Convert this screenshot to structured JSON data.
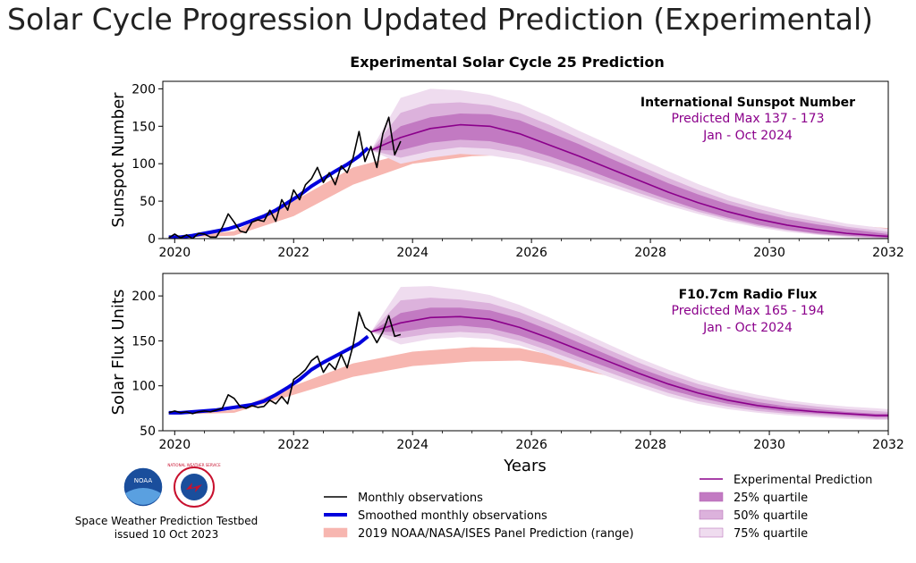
{
  "page": {
    "title": "Solar Cycle Progression Updated Prediction (Experimental)"
  },
  "chart_suptitle": "Experimental Solar Cycle 25 Prediction",
  "x_axis_label": "Years",
  "footer": {
    "org": "Space Weather Prediction Testbed",
    "issued": "issued 10 Oct 2023"
  },
  "logos": {
    "noaa": "NOAA",
    "nws": "NATIONAL WEATHER SERVICE"
  },
  "legend_left": [
    {
      "label": "Monthly observations",
      "color": "#000000",
      "kind": "line"
    },
    {
      "label": "Smoothed monthly observations",
      "color": "#0000dd",
      "kind": "thick"
    },
    {
      "label": "2019 NOAA/NASA/ISES Panel Prediction (range)",
      "color": "#f7b6b0",
      "kind": "patch"
    }
  ],
  "legend_right": [
    {
      "label": "Experimental Prediction",
      "color": "#8b008b",
      "kind": "line"
    },
    {
      "label": "25% quartile",
      "color": "#c27ac2",
      "kind": "patch"
    },
    {
      "label": "50% quartile",
      "color": "#dcb2dc",
      "kind": "patch"
    },
    {
      "label": "75% quartile",
      "color": "#efdcef",
      "kind": "patch"
    }
  ],
  "chart_data": [
    {
      "type": "line",
      "ylabel": "Sunspot Number",
      "xlim": [
        2019.8,
        2032
      ],
      "ylim": [
        0,
        210
      ],
      "xticks": [
        2020,
        2022,
        2024,
        2026,
        2028,
        2030,
        2032
      ],
      "yticks": [
        0,
        50,
        100,
        150,
        200
      ],
      "annotation": {
        "title": "International Sunspot Number",
        "line1": "Predicted Max 137 - 173",
        "line2": "Jan - Oct 2024"
      },
      "monthly_observations": {
        "x": [
          2019.9,
          2020.0,
          2020.1,
          2020.2,
          2020.3,
          2020.4,
          2020.5,
          2020.6,
          2020.7,
          2020.8,
          2020.9,
          2021.0,
          2021.1,
          2021.2,
          2021.3,
          2021.4,
          2021.5,
          2021.6,
          2021.7,
          2021.8,
          2021.9,
          2022.0,
          2022.1,
          2022.2,
          2022.3,
          2022.4,
          2022.5,
          2022.6,
          2022.7,
          2022.8,
          2022.9,
          2023.0,
          2023.1,
          2023.2,
          2023.3,
          2023.4,
          2023.5,
          2023.6,
          2023.7,
          2023.8
        ],
        "y": [
          1,
          6,
          1,
          5,
          0,
          7,
          6,
          2,
          2,
          15,
          33,
          22,
          10,
          8,
          22,
          25,
          23,
          38,
          23,
          52,
          38,
          65,
          52,
          72,
          80,
          95,
          75,
          88,
          72,
          97,
          88,
          108,
          143,
          103,
          123,
          95,
          140,
          162,
          112,
          130
        ]
      },
      "smoothed_observations": {
        "x": [
          2019.9,
          2020.1,
          2020.3,
          2020.5,
          2020.7,
          2020.9,
          2021.1,
          2021.3,
          2021.5,
          2021.7,
          2021.9,
          2022.1,
          2022.3,
          2022.5,
          2022.7,
          2022.9,
          2023.1,
          2023.25
        ],
        "y": [
          2,
          2,
          4,
          7,
          10,
          13,
          18,
          24,
          30,
          38,
          48,
          58,
          70,
          80,
          90,
          99,
          110,
          121
        ]
      },
      "panel_prediction_range": {
        "x": [
          2019.9,
          2021.0,
          2022.0,
          2023.0,
          2024.0,
          2025.0,
          2025.8,
          2026.5,
          2027.5,
          2028.5,
          2029.5,
          2030.5,
          2031.5,
          2032.0
        ],
        "lower": [
          1,
          4,
          30,
          72,
          100,
          110,
          112,
          100,
          74,
          50,
          30,
          16,
          6,
          3
        ],
        "upper": [
          1,
          10,
          50,
          95,
          116,
          124,
          122,
          108,
          85,
          62,
          42,
          28,
          17,
          14
        ]
      },
      "experimental_prediction": {
        "x": [
          2023.3,
          2023.8,
          2024.3,
          2024.8,
          2025.3,
          2025.8,
          2026.3,
          2026.8,
          2027.3,
          2027.8,
          2028.3,
          2028.8,
          2029.3,
          2029.8,
          2030.3,
          2030.8,
          2031.3,
          2031.8,
          2032.0
        ],
        "y": [
          118,
          135,
          147,
          152,
          150,
          140,
          125,
          110,
          94,
          78,
          62,
          48,
          36,
          26,
          18,
          12,
          7,
          4,
          3
        ],
        "q25": {
          "lower": [
            118,
            118,
            128,
            132,
            130,
            122,
            110,
            96,
            81,
            66,
            52,
            39,
            28,
            19,
            12,
            7,
            4,
            2,
            1
          ],
          "upper": [
            118,
            150,
            162,
            167,
            166,
            158,
            142,
            126,
            108,
            91,
            74,
            59,
            46,
            35,
            26,
            19,
            13,
            8,
            6
          ]
        },
        "q50": {
          "lower": [
            118,
            108,
            117,
            122,
            120,
            113,
            102,
            89,
            75,
            61,
            48,
            36,
            26,
            17,
            11,
            6,
            3,
            1,
            0
          ],
          "upper": [
            118,
            168,
            180,
            182,
            178,
            168,
            152,
            134,
            116,
            98,
            81,
            65,
            51,
            40,
            30,
            23,
            16,
            11,
            9
          ]
        },
        "q75": {
          "lower": [
            118,
            100,
            108,
            113,
            111,
            105,
            95,
            83,
            70,
            57,
            44,
            33,
            23,
            15,
            9,
            5,
            2,
            0,
            0
          ],
          "upper": [
            118,
            188,
            200,
            198,
            192,
            180,
            163,
            144,
            126,
            108,
            90,
            73,
            58,
            46,
            36,
            28,
            20,
            15,
            13
          ]
        }
      }
    },
    {
      "type": "line",
      "ylabel": "Solar Flux Units",
      "xlim": [
        2019.8,
        2032
      ],
      "ylim": [
        50,
        225
      ],
      "xticks": [
        2020,
        2022,
        2024,
        2026,
        2028,
        2030,
        2032
      ],
      "yticks": [
        50,
        100,
        150,
        200
      ],
      "annotation": {
        "title": "F10.7cm Radio Flux",
        "line1": "Predicted Max 165 - 194",
        "line2": "Jan - Oct 2024"
      },
      "monthly_observations": {
        "x": [
          2019.9,
          2020.0,
          2020.1,
          2020.2,
          2020.3,
          2020.4,
          2020.5,
          2020.6,
          2020.7,
          2020.8,
          2020.9,
          2021.0,
          2021.1,
          2021.2,
          2021.3,
          2021.4,
          2021.5,
          2021.6,
          2021.7,
          2021.8,
          2021.9,
          2022.0,
          2022.1,
          2022.2,
          2022.3,
          2022.4,
          2022.5,
          2022.6,
          2022.7,
          2022.8,
          2022.9,
          2023.0,
          2023.1,
          2023.2,
          2023.3,
          2023.4,
          2023.5,
          2023.6,
          2023.7,
          2023.8
        ],
        "y": [
          70,
          72,
          70,
          71,
          69,
          71,
          72,
          71,
          73,
          75,
          90,
          86,
          77,
          75,
          78,
          76,
          77,
          84,
          80,
          88,
          80,
          107,
          112,
          118,
          128,
          133,
          115,
          125,
          118,
          135,
          120,
          145,
          182,
          165,
          160,
          148,
          160,
          178,
          155,
          157
        ]
      },
      "smoothed_observations": {
        "x": [
          2019.9,
          2020.1,
          2020.3,
          2020.5,
          2020.7,
          2020.9,
          2021.1,
          2021.3,
          2021.5,
          2021.7,
          2021.9,
          2022.1,
          2022.3,
          2022.5,
          2022.7,
          2022.9,
          2023.1,
          2023.25
        ],
        "y": [
          70,
          70,
          71,
          72,
          73,
          75,
          77,
          79,
          83,
          90,
          98,
          107,
          118,
          126,
          133,
          140,
          147,
          155
        ]
      },
      "panel_prediction_range": {
        "x": [
          2019.9,
          2021.0,
          2022.0,
          2023.0,
          2024.0,
          2025.0,
          2025.8,
          2026.5,
          2027.5,
          2028.5,
          2029.5,
          2030.5,
          2031.5,
          2032.0
        ],
        "lower": [
          68,
          70,
          90,
          110,
          122,
          127,
          128,
          122,
          108,
          92,
          80,
          72,
          68,
          66
        ],
        "upper": [
          68,
          73,
          100,
          125,
          138,
          143,
          142,
          132,
          115,
          98,
          85,
          76,
          72,
          71
        ]
      },
      "experimental_prediction": {
        "x": [
          2023.3,
          2023.8,
          2024.3,
          2024.8,
          2025.3,
          2025.8,
          2026.3,
          2026.8,
          2027.3,
          2027.8,
          2028.3,
          2028.8,
          2029.3,
          2029.8,
          2030.3,
          2030.8,
          2031.3,
          2031.8,
          2032.0
        ],
        "y": [
          160,
          170,
          176,
          177,
          174,
          165,
          153,
          140,
          127,
          114,
          102,
          92,
          84,
          78,
          74,
          71,
          69,
          67,
          67
        ],
        "q25": {
          "lower": [
            160,
            160,
            165,
            167,
            164,
            156,
            145,
            132,
            120,
            108,
            96,
            87,
            80,
            75,
            71,
            69,
            67,
            65,
            65
          ],
          "upper": [
            160,
            181,
            187,
            187,
            184,
            175,
            162,
            148,
            134,
            120,
            108,
            97,
            89,
            82,
            77,
            74,
            71,
            69,
            69
          ]
        },
        "q50": {
          "lower": [
            160,
            153,
            158,
            160,
            158,
            150,
            139,
            127,
            115,
            103,
            92,
            83,
            77,
            72,
            69,
            67,
            65,
            63,
            63
          ],
          "upper": [
            160,
            195,
            198,
            196,
            192,
            182,
            169,
            155,
            140,
            126,
            113,
            102,
            93,
            86,
            81,
            77,
            74,
            72,
            71
          ]
        },
        "q75": {
          "lower": [
            160,
            146,
            152,
            154,
            152,
            145,
            134,
            122,
            110,
            99,
            88,
            80,
            74,
            70,
            67,
            65,
            63,
            62,
            62
          ],
          "upper": [
            160,
            210,
            211,
            207,
            201,
            190,
            176,
            161,
            146,
            131,
            118,
            106,
            97,
            90,
            84,
            80,
            77,
            75,
            74
          ]
        }
      }
    }
  ]
}
